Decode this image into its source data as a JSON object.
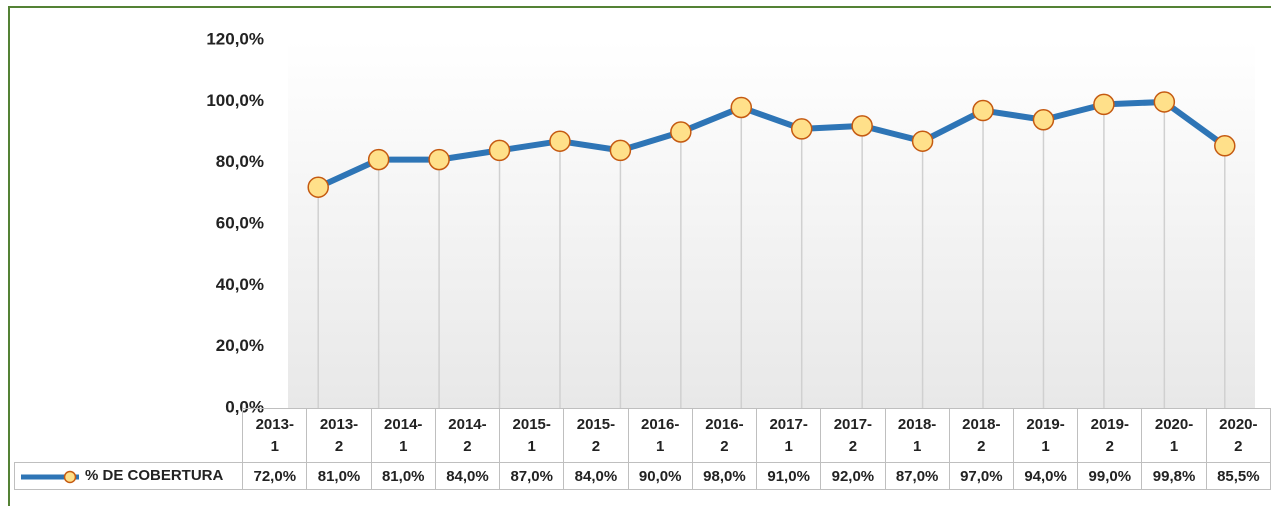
{
  "chart_data": {
    "type": "line",
    "categories": [
      "2013-1",
      "2013-2",
      "2014-1",
      "2014-2",
      "2015-1",
      "2015-2",
      "2016-1",
      "2016-2",
      "2017-1",
      "2017-2",
      "2018-1",
      "2018-2",
      "2019-1",
      "2019-2",
      "2020-1",
      "2020-2"
    ],
    "series": [
      {
        "name": "% DE COBERTURA",
        "color": "#2e75b6",
        "marker_color": "#ffe08a",
        "marker_edge": "#c55a11",
        "values": [
          72,
          81,
          81,
          84,
          87,
          84,
          90,
          98,
          91,
          92,
          87,
          97,
          94,
          99,
          99.8,
          85.5
        ],
        "value_labels": [
          "72,0%",
          "81,0%",
          "81,0%",
          "84,0%",
          "87,0%",
          "84,0%",
          "90,0%",
          "98,0%",
          "91,0%",
          "92,0%",
          "87,0%",
          "97,0%",
          "94,0%",
          "99,0%",
          "99,8%",
          "85,5%"
        ]
      }
    ],
    "ylim": [
      0,
      120
    ],
    "yticks": [
      {
        "value": 0,
        "label": "0,0%"
      },
      {
        "value": 20,
        "label": "20,0%"
      },
      {
        "value": 40,
        "label": "40,0%"
      },
      {
        "value": 60,
        "label": "60,0%"
      },
      {
        "value": 80,
        "label": "80,0%"
      },
      {
        "value": 100,
        "label": "100,0%"
      },
      {
        "value": 120,
        "label": "120,0%"
      }
    ],
    "drop_lines": true
  }
}
